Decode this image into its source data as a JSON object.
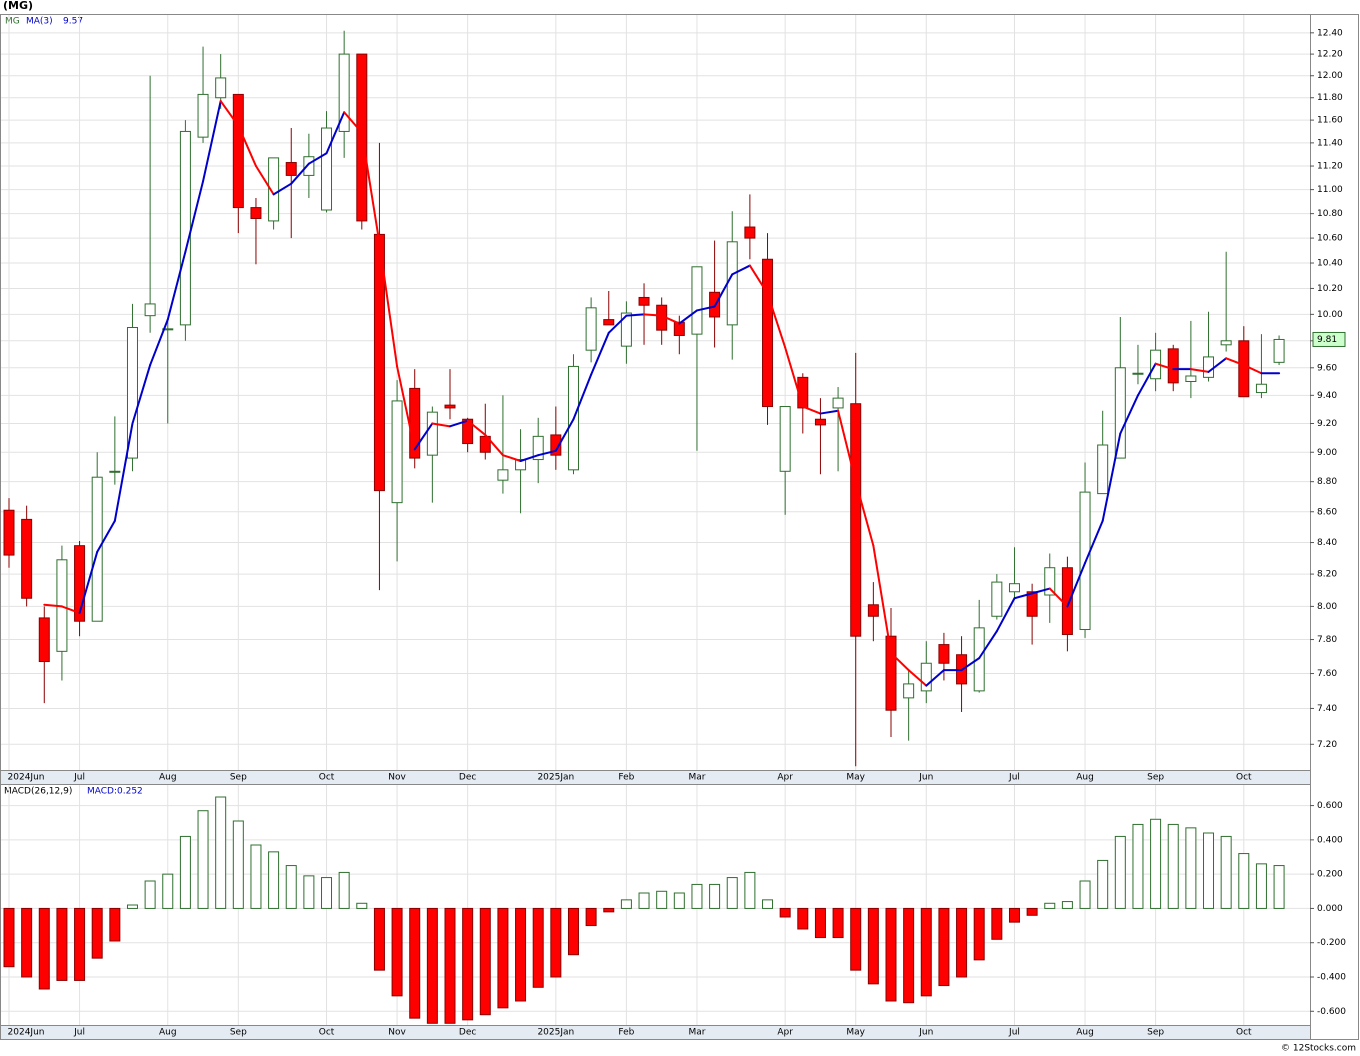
{
  "chart_data": [
    {
      "type": "candlestick",
      "title": "(MG)",
      "symbol_label": "MG",
      "categories": [
        "2024Jun",
        null,
        null,
        null,
        "Jul",
        null,
        null,
        null,
        null,
        "Aug",
        null,
        null,
        null,
        "Sep",
        null,
        null,
        null,
        null,
        "Oct",
        null,
        null,
        null,
        "Nov",
        null,
        null,
        null,
        "Dec",
        null,
        null,
        null,
        null,
        "2025Jan",
        null,
        null,
        null,
        "Feb",
        null,
        null,
        null,
        "Mar",
        null,
        null,
        null,
        null,
        "Apr",
        null,
        null,
        null,
        "May",
        null,
        null,
        null,
        "Jun",
        null,
        null,
        null,
        null,
        "Jul",
        null,
        null,
        null,
        "Aug",
        null,
        null,
        null,
        "Sep",
        null,
        null,
        null,
        null,
        "Oct",
        null,
        null
      ],
      "open": [
        8.61,
        8.55,
        7.93,
        7.73,
        8.38,
        7.91,
        8.87,
        8.96,
        9.99,
        9.89,
        9.92,
        11.45,
        11.8,
        11.83,
        10.85,
        10.74,
        11.23,
        11.12,
        10.83,
        11.5,
        12.2,
        10.63,
        8.66,
        9.45,
        8.98,
        9.33,
        9.23,
        9.11,
        8.81,
        8.88,
        8.95,
        9.12,
        8.88,
        9.73,
        9.96,
        9.76,
        10.13,
        10.07,
        9.94,
        9.85,
        10.17,
        9.92,
        10.69,
        10.43,
        8.87,
        9.53,
        9.23,
        9.31,
        9.34,
        8.01,
        7.82,
        7.46,
        7.5,
        7.77,
        7.71,
        7.5,
        7.94,
        8.09,
        8.09,
        8.07,
        8.24,
        7.86,
        8.72,
        8.96,
        9.56,
        9.52,
        9.74,
        9.5,
        9.53,
        9.77,
        9.8,
        9.42,
        9.64
      ],
      "high": [
        8.69,
        8.64,
        8.0,
        8.38,
        8.41,
        9.0,
        9.25,
        10.08,
        12.0,
        9.95,
        11.6,
        12.27,
        12.2,
        11.83,
        10.93,
        11.27,
        11.53,
        11.48,
        11.68,
        12.42,
        12.2,
        11.4,
        9.51,
        9.59,
        9.32,
        9.59,
        9.24,
        9.34,
        9.4,
        9.16,
        9.24,
        9.32,
        9.7,
        10.13,
        10.18,
        10.1,
        10.24,
        10.13,
        9.99,
        10.37,
        10.58,
        10.82,
        10.96,
        10.64,
        9.32,
        9.56,
        9.38,
        9.46,
        9.71,
        8.15,
        7.99,
        7.62,
        7.79,
        7.84,
        7.82,
        8.04,
        8.2,
        8.37,
        8.14,
        8.33,
        8.31,
        8.93,
        9.29,
        9.98,
        9.77,
        9.86,
        9.77,
        9.95,
        10.02,
        10.49,
        9.91,
        9.85,
        9.84
      ],
      "low": [
        8.24,
        8.0,
        7.43,
        7.56,
        7.82,
        7.91,
        8.78,
        8.87,
        9.86,
        9.2,
        9.8,
        11.4,
        11.7,
        10.64,
        10.39,
        10.67,
        10.6,
        10.93,
        10.81,
        11.27,
        10.67,
        8.1,
        8.28,
        8.89,
        8.66,
        9.23,
        9.0,
        8.95,
        8.72,
        8.59,
        8.79,
        8.88,
        8.85,
        9.64,
        9.92,
        9.63,
        9.77,
        9.77,
        9.7,
        9.01,
        9.75,
        9.66,
        10.43,
        9.19,
        8.58,
        9.13,
        8.85,
        8.87,
        7.08,
        7.79,
        7.24,
        7.22,
        7.43,
        7.56,
        7.38,
        7.49,
        7.92,
        8.04,
        7.77,
        7.9,
        7.73,
        7.81,
        8.72,
        8.96,
        9.48,
        9.43,
        9.43,
        9.38,
        9.5,
        9.72,
        9.39,
        9.38,
        9.62
      ],
      "close": [
        8.32,
        8.05,
        7.67,
        8.29,
        7.91,
        8.83,
        8.87,
        9.9,
        10.08,
        9.89,
        11.5,
        11.83,
        11.98,
        10.85,
        10.76,
        11.27,
        11.12,
        11.28,
        11.53,
        12.2,
        10.74,
        8.74,
        9.36,
        8.96,
        9.28,
        9.31,
        9.06,
        9.0,
        8.88,
        8.95,
        9.11,
        8.98,
        9.61,
        10.05,
        9.92,
        10.01,
        10.07,
        9.88,
        9.84,
        10.37,
        9.98,
        10.57,
        10.6,
        9.32,
        9.32,
        9.31,
        9.19,
        9.38,
        7.82,
        7.94,
        7.39,
        7.54,
        7.66,
        7.66,
        7.54,
        7.87,
        8.15,
        8.14,
        7.94,
        8.24,
        7.83,
        8.73,
        9.05,
        9.6,
        9.56,
        9.73,
        9.49,
        9.54,
        9.68,
        9.8,
        9.39,
        9.48,
        9.81
      ],
      "up_color": "#2f6f2f",
      "down_color": "#ff0000",
      "down_edge_color": "#8b0000",
      "series": [
        {
          "name": "MA(3)",
          "legend_value": "9.57",
          "up_color": "#0000cc",
          "down_color": "#ff0000",
          "values": [
            null,
            null,
            8.01,
            8.0,
            7.96,
            8.34,
            8.54,
            9.2,
            9.62,
            9.96,
            10.49,
            11.07,
            11.77,
            11.55,
            11.2,
            10.96,
            11.05,
            11.22,
            11.31,
            11.67,
            11.49,
            10.56,
            9.61,
            9.02,
            9.2,
            9.18,
            9.22,
            9.12,
            8.98,
            8.94,
            8.98,
            9.01,
            9.23,
            9.55,
            9.86,
            9.99,
            10.0,
            9.99,
            9.93,
            10.03,
            10.06,
            10.31,
            10.38,
            10.16,
            9.75,
            9.32,
            9.27,
            9.29,
            8.8,
            8.38,
            7.72,
            7.62,
            7.53,
            7.62,
            7.62,
            7.69,
            7.85,
            8.05,
            8.08,
            8.11,
            8.0,
            8.27,
            8.54,
            9.13,
            9.4,
            9.63,
            9.59,
            9.59,
            9.57,
            9.67,
            9.62,
            9.56,
            9.56
          ]
        }
      ],
      "last_label": "9.81",
      "log_scale": true,
      "grid": true,
      "ylim": [
        7.06,
        12.57
      ],
      "yticks": [
        {
          "value": 7.2,
          "label": "7.20"
        },
        {
          "value": 7.4,
          "label": "7.40"
        },
        {
          "value": 7.6,
          "label": "7.60"
        },
        {
          "value": 7.8,
          "label": "7.80"
        },
        {
          "value": 8.0,
          "label": "8.00"
        },
        {
          "value": 8.2,
          "label": "8.20"
        },
        {
          "value": 8.4,
          "label": "8.40"
        },
        {
          "value": 8.6,
          "label": "8.60"
        },
        {
          "value": 8.8,
          "label": "8.80"
        },
        {
          "value": 9.0,
          "label": "9.00"
        },
        {
          "value": 9.2,
          "label": "9.20"
        },
        {
          "value": 9.4,
          "label": "9.40"
        },
        {
          "value": 9.6,
          "label": "9.60"
        },
        {
          "value": 9.8,
          "label": "9.80"
        },
        {
          "value": 10.0,
          "label": "10.00"
        },
        {
          "value": 10.2,
          "label": "10.20"
        },
        {
          "value": 10.4,
          "label": "10.40"
        },
        {
          "value": 10.6,
          "label": "10.60"
        },
        {
          "value": 10.8,
          "label": "10.80"
        },
        {
          "value": 11.0,
          "label": "11.00"
        },
        {
          "value": 11.2,
          "label": "11.20"
        },
        {
          "value": 11.4,
          "label": "11.40"
        },
        {
          "value": 11.6,
          "label": "11.60"
        },
        {
          "value": 11.8,
          "label": "11.80"
        },
        {
          "value": 12.0,
          "label": "12.00"
        },
        {
          "value": 12.2,
          "label": "12.20"
        },
        {
          "value": 12.4,
          "label": "12.40"
        }
      ]
    },
    {
      "type": "bar",
      "value_label": "MACD:0.252",
      "categories": [
        "2024Jun",
        null,
        null,
        null,
        "Jul",
        null,
        null,
        null,
        null,
        "Aug",
        null,
        null,
        null,
        "Sep",
        null,
        null,
        null,
        null,
        "Oct",
        null,
        null,
        null,
        "Nov",
        null,
        null,
        null,
        "Dec",
        null,
        null,
        null,
        null,
        "2025Jan",
        null,
        null,
        null,
        "Feb",
        null,
        null,
        null,
        "Mar",
        null,
        null,
        null,
        null,
        "Apr",
        null,
        null,
        null,
        "May",
        null,
        null,
        null,
        "Jun",
        null,
        null,
        null,
        null,
        "Jul",
        null,
        null,
        null,
        "Aug",
        null,
        null,
        null,
        "Sep",
        null,
        null,
        null,
        null,
        "Oct",
        null,
        null
      ],
      "series": [
        {
          "name": "MACD(26,12,9)",
          "positive_color": "#2f6f2f",
          "negative_color": "#ff0000",
          "values": [
            -0.34,
            -0.4,
            -0.47,
            -0.42,
            -0.42,
            -0.29,
            -0.19,
            0.02,
            0.16,
            0.2,
            0.42,
            0.57,
            0.65,
            0.51,
            0.37,
            0.33,
            0.25,
            0.19,
            0.18,
            0.21,
            0.03,
            -0.36,
            -0.51,
            -0.64,
            -0.67,
            -0.67,
            -0.65,
            -0.62,
            -0.58,
            -0.54,
            -0.46,
            -0.4,
            -0.27,
            -0.1,
            -0.02,
            0.05,
            0.09,
            0.1,
            0.09,
            0.14,
            0.14,
            0.18,
            0.21,
            0.05,
            -0.05,
            -0.12,
            -0.17,
            -0.17,
            -0.36,
            -0.44,
            -0.54,
            -0.55,
            -0.51,
            -0.45,
            -0.4,
            -0.3,
            -0.18,
            -0.08,
            -0.04,
            0.03,
            0.04,
            0.16,
            0.28,
            0.42,
            0.49,
            0.52,
            0.49,
            0.47,
            0.44,
            0.42,
            0.32,
            0.26,
            0.25
          ]
        }
      ],
      "grid": true,
      "ylim": [
        -0.68,
        0.72
      ],
      "yticks": [
        {
          "value": -0.6,
          "label": "-0.600"
        },
        {
          "value": -0.4,
          "label": "-0.400"
        },
        {
          "value": -0.2,
          "label": "-0.200"
        },
        {
          "value": 0,
          "label": "0.000"
        },
        {
          "value": 0.2,
          "label": "0.200"
        },
        {
          "value": 0.4,
          "label": "0.400"
        },
        {
          "value": 0.6,
          "label": "0.600"
        }
      ]
    }
  ],
  "footer": "© 12Stocks.com"
}
